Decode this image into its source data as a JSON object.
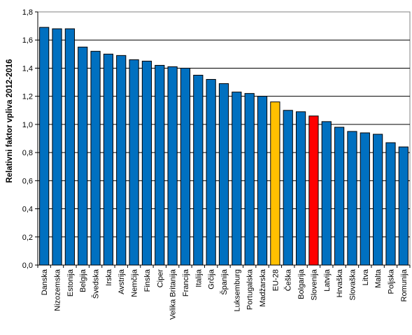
{
  "chart_data": {
    "type": "bar",
    "title": "",
    "xlabel": "",
    "ylabel": "Relativni faktor vpliva 2012-2016",
    "ylim": [
      0,
      1.8
    ],
    "ytick_labels": [
      "0,0",
      "0,2",
      "0,4",
      "0,6",
      "0,8",
      "1,0",
      "1,2",
      "1,4",
      "1,6",
      "1,8"
    ],
    "grid": "horizontal",
    "legend": "none",
    "categories": [
      "Danska",
      "Nizozemska",
      "Estonija",
      "Belgija",
      "Švedska",
      "Irska",
      "Avstrija",
      "Nemčija",
      "Finska",
      "Ciper",
      "Velika Britanija",
      "Francija",
      "Italija",
      "Grčija",
      "Španija",
      "Luksemburg",
      "Portugalska",
      "Madžarska",
      "EU-28",
      "Češka",
      "Bolgarija",
      "Slovenija",
      "Latvija",
      "Hrvaška",
      "Slovaška",
      "Litva",
      "Malta",
      "Poljska",
      "Romunija"
    ],
    "values": [
      1.69,
      1.68,
      1.68,
      1.55,
      1.52,
      1.5,
      1.49,
      1.46,
      1.45,
      1.42,
      1.41,
      1.4,
      1.35,
      1.32,
      1.29,
      1.23,
      1.22,
      1.2,
      1.16,
      1.1,
      1.09,
      1.06,
      1.02,
      0.98,
      0.95,
      0.94,
      0.93,
      0.87,
      0.84
    ],
    "bar_colors": [
      "#0070C0",
      "#0070C0",
      "#0070C0",
      "#0070C0",
      "#0070C0",
      "#0070C0",
      "#0070C0",
      "#0070C0",
      "#0070C0",
      "#0070C0",
      "#0070C0",
      "#0070C0",
      "#0070C0",
      "#0070C0",
      "#0070C0",
      "#0070C0",
      "#0070C0",
      "#0070C0",
      "#FFC000",
      "#0070C0",
      "#0070C0",
      "#FF0000",
      "#0070C0",
      "#0070C0",
      "#0070C0",
      "#0070C0",
      "#0070C0",
      "#0070C0",
      "#0070C0"
    ],
    "colors": {
      "default": "#0070C0",
      "eu": "#FFC000",
      "highlight": "#FF0000"
    }
  }
}
